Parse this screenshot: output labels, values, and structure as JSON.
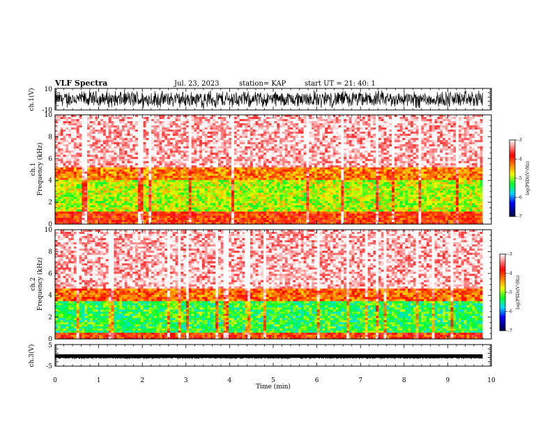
{
  "header": {
    "title": "VLF Spectra",
    "date": "Jul. 23, 2023",
    "station": "station= KAP",
    "start_ut": "start UT =  21: 40: 1"
  },
  "colors": {
    "waveform": "#000000",
    "spectrogram_ramp": [
      "#000033",
      "#0000ff",
      "#00ffff",
      "#00ff00",
      "#ffff00",
      "#ff8000",
      "#ff0000",
      "#ffffff"
    ]
  },
  "chart_data": [
    {
      "type": "line",
      "ylabel": "ch.1(V)",
      "ylim": [
        -10,
        10
      ],
      "ytick_labels": [
        "10",
        "-10"
      ],
      "xlim": [
        0,
        10
      ],
      "note_values_visible": "dense black waveform spanning roughly -10 to 10 V over 0 to 9.8 min"
    },
    {
      "type": "heatmap",
      "ylabel": "ch.1\nFrequency (kHz)",
      "ylim": [
        0,
        10
      ],
      "ytick_labels": [
        "0",
        "2",
        "4",
        "6",
        "8",
        "10"
      ],
      "xlim": [
        0,
        10
      ],
      "data_extent_x": [
        0,
        9.8
      ],
      "colorbar": {
        "label": "log(PSD)(V²/Hz)",
        "range": [
          -7,
          -3
        ],
        "tick_labels": [
          "-3",
          "-4",
          "-5",
          "-6",
          "-7"
        ]
      },
      "bands": [
        {
          "fmin": 0,
          "fmax": 1.1,
          "level": -4.0
        },
        {
          "fmin": 1.1,
          "fmax": 4.0,
          "level": -4.9
        },
        {
          "fmin": 4.0,
          "fmax": 5.2,
          "level": -4.3
        },
        {
          "fmin": 5.2,
          "fmax": 10,
          "level": -3.2
        }
      ]
    },
    {
      "type": "heatmap",
      "ylabel": "ch.2\nFrequency (kHz)",
      "ylim": [
        0,
        10
      ],
      "ytick_labels": [
        "0",
        "2",
        "4",
        "6",
        "8",
        "10"
      ],
      "xlim": [
        0,
        10
      ],
      "data_extent_x": [
        0,
        9.8
      ],
      "colorbar": {
        "label": "log(PSD)(V²/Hz)",
        "range": [
          -7,
          -3
        ],
        "tick_labels": [
          "-3",
          "-4",
          "-5",
          "-6",
          "-7"
        ]
      },
      "bands": [
        {
          "fmin": 0,
          "fmax": 0.6,
          "level": -4.0
        },
        {
          "fmin": 0.6,
          "fmax": 3.5,
          "level": -5.3
        },
        {
          "fmin": 3.5,
          "fmax": 4.7,
          "level": -4.2
        },
        {
          "fmin": 4.7,
          "fmax": 10,
          "level": -3.2
        }
      ]
    },
    {
      "type": "line",
      "ylabel": "ch.3(V)",
      "ylim": [
        -5,
        5
      ],
      "ytick_labels": [
        "5",
        "-5"
      ],
      "xlim": [
        0,
        10
      ],
      "note_values_visible": "thick flat trace near -1 V"
    }
  ],
  "xaxis": {
    "label": "Time (min)",
    "tick_labels": [
      "0",
      "1",
      "2",
      "3",
      "4",
      "5",
      "6",
      "7",
      "8",
      "9",
      "10"
    ]
  }
}
